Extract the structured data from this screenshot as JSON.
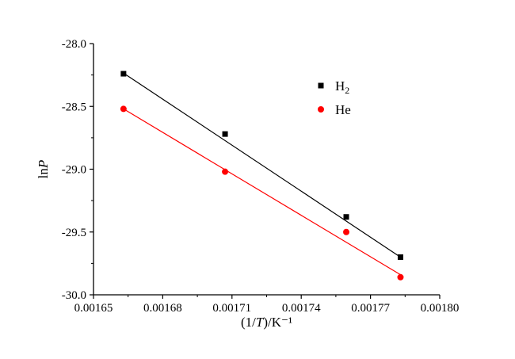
{
  "chart_data": {
    "type": "scatter",
    "xlabel": "(1/T)/K⁻¹",
    "ylabel": "lnP",
    "xlim": [
      0.00165,
      0.0018
    ],
    "ylim": [
      -30.0,
      -28.0
    ],
    "x_ticks": [
      "0.00165",
      "0.00168",
      "0.00171",
      "0.00174",
      "0.00177",
      "0.00180"
    ],
    "y_ticks": [
      "-28.0",
      "-28.5",
      "-29.0",
      "-29.5",
      "-30.0"
    ],
    "legend_position": "top-right",
    "series": [
      {
        "name": "H2",
        "marker": "square",
        "color": "#000000",
        "points": [
          {
            "x": 0.001663,
            "y": -28.24
          },
          {
            "x": 0.001707,
            "y": -28.72
          },
          {
            "x": 0.0017595,
            "y": -29.38
          },
          {
            "x": 0.001783,
            "y": -29.7
          }
        ],
        "fit": {
          "x": [
            0.001663,
            0.001783
          ],
          "y": [
            -28.235,
            -29.7
          ]
        }
      },
      {
        "name": "He",
        "marker": "circle",
        "color": "#ff0000",
        "points": [
          {
            "x": 0.001663,
            "y": -28.52
          },
          {
            "x": 0.001707,
            "y": -29.02
          },
          {
            "x": 0.0017595,
            "y": -29.5
          },
          {
            "x": 0.001783,
            "y": -29.86
          }
        ],
        "fit": {
          "x": [
            0.001663,
            0.001783
          ],
          "y": [
            -28.52,
            -29.84
          ]
        }
      }
    ]
  }
}
